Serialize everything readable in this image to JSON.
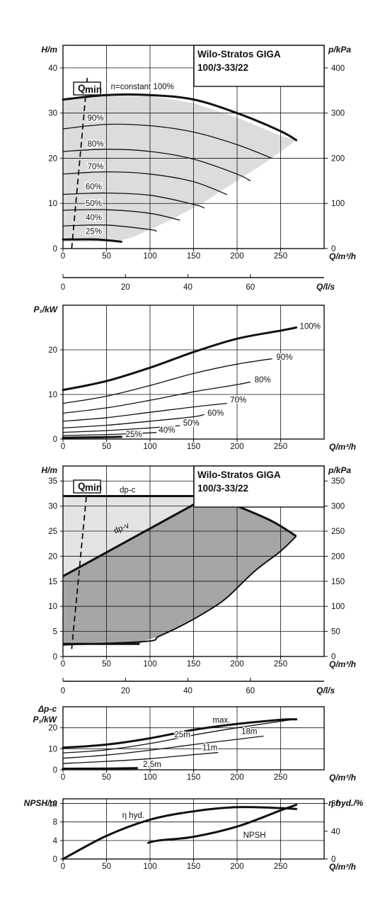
{
  "chart_data": [
    {
      "type": "line",
      "id": "head_curves",
      "title_lines": [
        "Wilo-Stratos GIGA",
        "100/3-33/22"
      ],
      "xlabel": "Q/m³/h",
      "ylabel": "H/m",
      "y2label": "p/kPa",
      "xlim": [
        0,
        300
      ],
      "ylim": [
        0,
        45
      ],
      "xticks": [
        0,
        50,
        100,
        150,
        200,
        250
      ],
      "yticks": [
        0,
        10,
        20,
        30,
        40
      ],
      "y2ticks": [
        0,
        100,
        200,
        300,
        400
      ],
      "x2label": "Q/l/s",
      "x2ticks": [
        0,
        20,
        40,
        60
      ],
      "qmin_label": "Q",
      "qmin_sub": "min",
      "qmin_line": [
        [
          10,
          0
        ],
        [
          28,
          38
        ]
      ],
      "grid": true,
      "envelope": [
        [
          0,
          33
        ],
        [
          50,
          33.8
        ],
        [
          100,
          33.8
        ],
        [
          150,
          32.2
        ],
        [
          200,
          29
        ],
        [
          250,
          25
        ],
        [
          268,
          24
        ],
        [
          240,
          20
        ],
        [
          200,
          15
        ],
        [
          160,
          10
        ],
        [
          120,
          6
        ],
        [
          80,
          2.5
        ],
        [
          60,
          1.5
        ],
        [
          0,
          1.5
        ]
      ],
      "series": [
        {
          "name": "n=constant 100%",
          "label": "n=constant 100%",
          "bold": true,
          "x": [
            0,
            50,
            100,
            150,
            200,
            250,
            268
          ],
          "y": [
            33,
            34,
            34,
            33,
            30,
            26,
            24
          ],
          "lx": 55,
          "ly": 35.3
        },
        {
          "name": "90%",
          "label": "90%",
          "x": [
            0,
            50,
            100,
            150,
            200,
            240
          ],
          "y": [
            26.5,
            27.5,
            27.2,
            25.8,
            23,
            20
          ],
          "lx": 28,
          "ly": 28.3
        },
        {
          "name": "80%",
          "label": "80%",
          "x": [
            0,
            50,
            100,
            150,
            200,
            215
          ],
          "y": [
            21.5,
            22,
            21.5,
            19.8,
            16.5,
            15
          ],
          "lx": 28,
          "ly": 22.6
        },
        {
          "name": "70%",
          "label": "70%",
          "x": [
            0,
            50,
            100,
            150,
            188
          ],
          "y": [
            16.5,
            17,
            16.5,
            14.8,
            12
          ],
          "lx": 28,
          "ly": 17.6
        },
        {
          "name": "60%",
          "label": "60%",
          "x": [
            0,
            50,
            100,
            150,
            162
          ],
          "y": [
            12,
            12.3,
            11.8,
            9.8,
            9
          ],
          "lx": 26,
          "ly": 13.1
        },
        {
          "name": "50%",
          "label": "50%",
          "x": [
            0,
            50,
            100,
            134
          ],
          "y": [
            8.5,
            8.6,
            7.8,
            6.3
          ],
          "lx": 26,
          "ly": 9.4
        },
        {
          "name": "40%",
          "label": "40%",
          "x": [
            0,
            50,
            100,
            107
          ],
          "y": [
            5,
            5.2,
            4.2,
            3.8
          ],
          "lx": 26,
          "ly": 6.3
        },
        {
          "name": "25%",
          "label": "25%",
          "bold": true,
          "x": [
            0,
            40,
            67
          ],
          "y": [
            2,
            2,
            1.5
          ],
          "lx": 26,
          "ly": 3.2
        }
      ]
    },
    {
      "type": "line",
      "id": "power_curves",
      "xlabel": "Q/m³/h",
      "ylabel": "P₁/kW",
      "xlim": [
        0,
        300
      ],
      "ylim": [
        0,
        30
      ],
      "xticks": [
        0,
        50,
        100,
        150,
        200,
        250
      ],
      "yticks": [
        0,
        10,
        20
      ],
      "grid": true,
      "series": [
        {
          "name": "100%",
          "label": "100%",
          "bold": true,
          "x": [
            0,
            50,
            100,
            150,
            200,
            250,
            268
          ],
          "y": [
            11,
            13,
            16,
            19.5,
            22.5,
            24.3,
            25
          ],
          "lx": 272,
          "ly": 24.7
        },
        {
          "name": "90%",
          "label": "90%",
          "x": [
            0,
            50,
            100,
            150,
            200,
            240
          ],
          "y": [
            8,
            9.6,
            12,
            14.7,
            16.8,
            18
          ],
          "lx": 245,
          "ly": 17.8
        },
        {
          "name": "80%",
          "label": "80%",
          "x": [
            0,
            50,
            100,
            150,
            200,
            215
          ],
          "y": [
            5.8,
            7,
            8.7,
            10.6,
            12.2,
            12.8
          ],
          "lx": 220,
          "ly": 12.7
        },
        {
          "name": "70%",
          "label": "70%",
          "x": [
            0,
            50,
            100,
            150,
            188
          ],
          "y": [
            4,
            4.8,
            6,
            7.2,
            8
          ],
          "lx": 192,
          "ly": 8.2
        },
        {
          "name": "60%",
          "label": "60%",
          "x": [
            0,
            50,
            100,
            150,
            162
          ],
          "y": [
            2.5,
            3.1,
            4,
            5,
            5.5
          ],
          "lx": 166,
          "ly": 5.2
        },
        {
          "name": "50%",
          "label": "50%",
          "x": [
            0,
            50,
            100,
            134
          ],
          "y": [
            1.5,
            1.9,
            2.5,
            3
          ],
          "lx": 138,
          "ly": 3
        },
        {
          "name": "40%",
          "label": "40%",
          "x": [
            0,
            50,
            100,
            107
          ],
          "y": [
            0.8,
            1,
            1.4,
            1.5
          ],
          "lx": 110,
          "ly": 1.4
        },
        {
          "name": "25%",
          "label": "25%",
          "bold": true,
          "x": [
            0,
            40,
            67
          ],
          "y": [
            0.3,
            0.4,
            0.5
          ],
          "lx": 72,
          "ly": 0.5
        }
      ]
    },
    {
      "type": "area",
      "id": "head_control_modes",
      "title_lines": [
        "Wilo-Stratos GIGA",
        "100/3-33/22"
      ],
      "xlabel": "Q/m³/h",
      "ylabel": "H/m",
      "y2label": "p/kPa",
      "xlim": [
        0,
        300
      ],
      "ylim": [
        0,
        38
      ],
      "xticks": [
        0,
        50,
        100,
        150,
        200,
        250
      ],
      "yticks": [
        0,
        5,
        10,
        15,
        20,
        25,
        30,
        35
      ],
      "y2ticks": [
        0,
        50,
        100,
        150,
        200,
        250,
        300,
        350
      ],
      "x2label": "Q/l/s",
      "x2ticks": [
        0,
        20,
        40,
        60
      ],
      "qmin_label": "Q",
      "qmin_sub": "min",
      "qmin_line": [
        [
          10,
          1.5
        ],
        [
          28,
          34
        ]
      ],
      "grid": true,
      "dpc_label": "dp-c",
      "dpv_label": "dp-v",
      "light_region": [
        [
          0,
          32
        ],
        [
          168,
          32
        ],
        [
          0,
          16
        ]
      ],
      "dark_region": [
        [
          0,
          16
        ],
        [
          168,
          32
        ],
        [
          200,
          30
        ],
        [
          240,
          27
        ],
        [
          268,
          24
        ],
        [
          250,
          21
        ],
        [
          220,
          17
        ],
        [
          190,
          12
        ],
        [
          170,
          9.5
        ],
        [
          140,
          6.5
        ],
        [
          110,
          4
        ],
        [
          95,
          3.2
        ],
        [
          88,
          2.5
        ],
        [
          0,
          2.5
        ]
      ],
      "dpc_line": [
        [
          0,
          32
        ],
        [
          168,
          32
        ]
      ],
      "dpv_line": [
        [
          0,
          16
        ],
        [
          168,
          32
        ]
      ],
      "max_line": [
        [
          168,
          32
        ],
        [
          200,
          30
        ],
        [
          240,
          27
        ],
        [
          268,
          24
        ]
      ],
      "min_line": [
        [
          0,
          2.5
        ],
        [
          88,
          2.5
        ]
      ],
      "min_line2": [
        [
          0,
          2.3
        ],
        [
          95,
          3
        ],
        [
          110,
          4
        ],
        [
          140,
          6.5
        ],
        [
          170,
          9.5
        ],
        [
          190,
          12
        ],
        [
          220,
          17
        ],
        [
          250,
          21
        ],
        [
          268,
          24
        ]
      ]
    },
    {
      "type": "line",
      "id": "power_dpc",
      "xlabel": "Q/m³/h",
      "ylabel_lines": [
        "Δp-c",
        "P₁/kW"
      ],
      "xlim": [
        0,
        300
      ],
      "ylim": [
        0,
        30
      ],
      "xticks": [
        0,
        50,
        100,
        150,
        200,
        250
      ],
      "yticks": [
        0,
        10,
        20
      ],
      "grid": true,
      "series": [
        {
          "name": "max.",
          "label": "max.",
          "bold": true,
          "x": [
            0,
            50,
            100,
            150,
            200,
            250,
            268
          ],
          "y": [
            10.5,
            12,
            15,
            19,
            21.8,
            23.8,
            24
          ],
          "lx": 172,
          "ly": 22.5
        },
        {
          "name": "25m",
          "label": "25m",
          "x": [
            0,
            50,
            100,
            150,
            200,
            265
          ],
          "y": [
            8,
            9.5,
            12.5,
            16.5,
            20,
            24
          ],
          "lx": 128,
          "ly": 15.5
        },
        {
          "name": "18m",
          "label": "18m",
          "x": [
            0,
            50,
            100,
            150,
            200,
            230
          ],
          "y": [
            5.5,
            7,
            9.3,
            12,
            14.5,
            16
          ],
          "lx": 205,
          "ly": 17
        },
        {
          "name": "11m",
          "label": "11m",
          "x": [
            0,
            50,
            100,
            150,
            178
          ],
          "y": [
            3,
            4,
            5.3,
            7.2,
            8.2
          ],
          "lx": 160,
          "ly": 9.3
        },
        {
          "name": "2,5m",
          "label": "2,5m",
          "bold": true,
          "x": [
            0,
            50,
            85
          ],
          "y": [
            0.5,
            0.6,
            0.8
          ],
          "lx": 92,
          "ly": 1.3
        }
      ]
    },
    {
      "type": "line",
      "id": "npsh_efficiency",
      "xlabel": "Q/m³/h",
      "ylabel": "NPSH/m",
      "y2label": "η hyd./%",
      "xlim": [
        0,
        300
      ],
      "ylim": [
        0,
        13
      ],
      "xticks": [
        0,
        50,
        100,
        150,
        200,
        250
      ],
      "yticks": [
        0,
        4,
        8,
        12
      ],
      "y2ticks": [
        0,
        40,
        80
      ],
      "grid": true,
      "series": [
        {
          "name": "η hyd.",
          "label": "η hyd.",
          "bold": true,
          "x": [
            0,
            50,
            100,
            150,
            200,
            250,
            268
          ],
          "y": [
            0,
            5,
            8.5,
            10.3,
            11.2,
            11,
            10.8
          ],
          "lx": 68,
          "ly": 8.9
        },
        {
          "name": "NPSH",
          "label": "NPSH",
          "bold": true,
          "x": [
            98,
            110,
            150,
            200,
            250,
            268
          ],
          "y": [
            3.5,
            4,
            4.8,
            7,
            10.5,
            11.7
          ],
          "lx": 207,
          "ly": 4.6
        }
      ]
    }
  ]
}
